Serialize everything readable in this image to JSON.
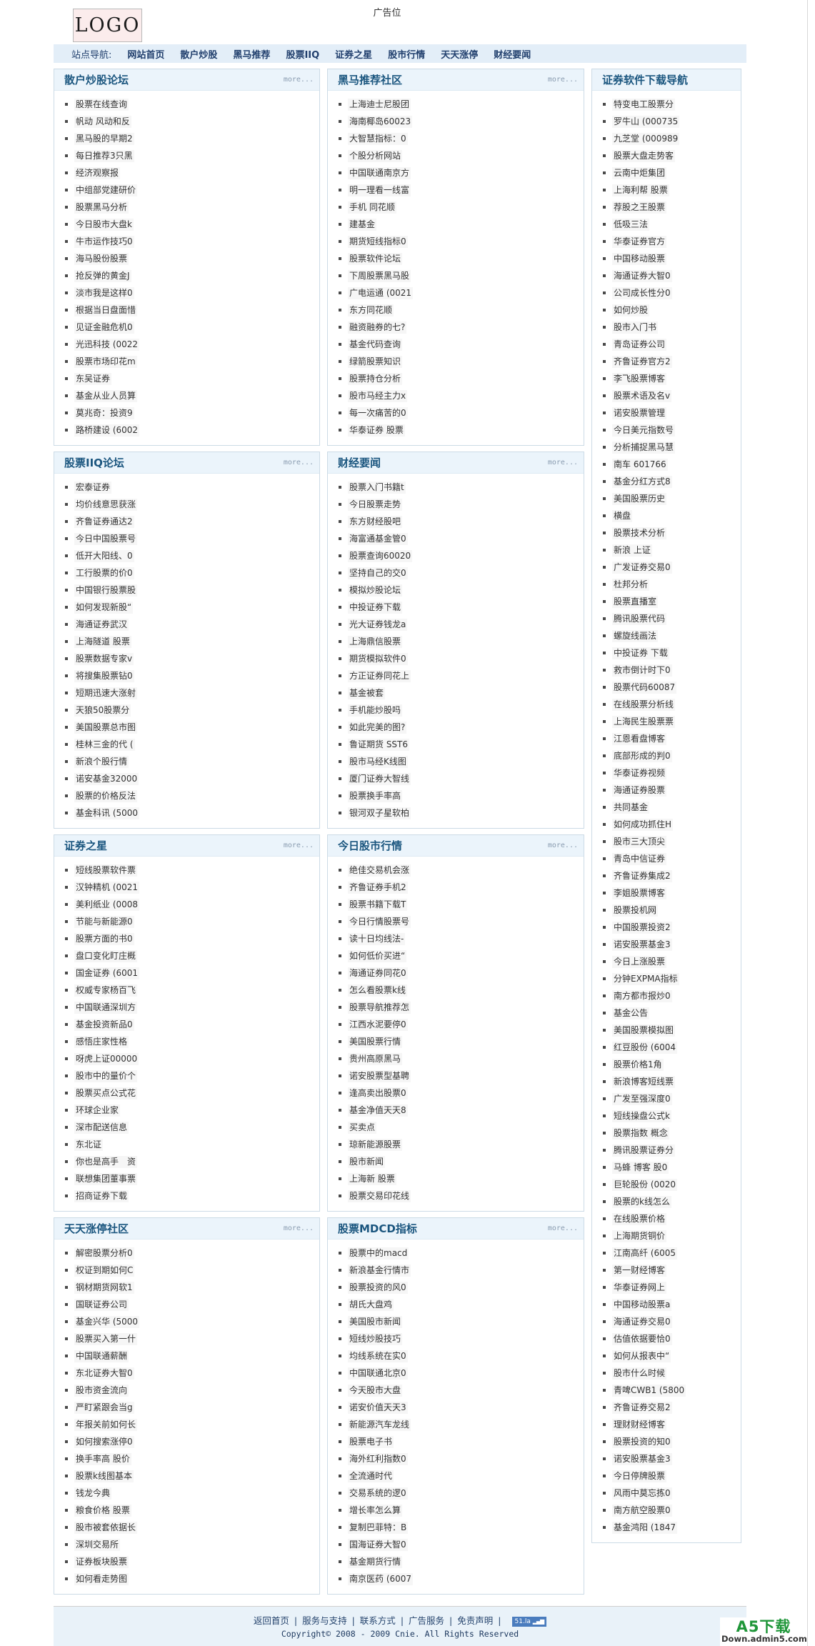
{
  "header": {
    "logo": "LOGO",
    "ad_text": "广告位"
  },
  "nav": {
    "label": "站点导航:",
    "items": [
      "网站首页",
      "散户炒股",
      "黑马推荐",
      "股票IIQ",
      "证券之星",
      "股市行情",
      "天天涨停",
      "财经要闻"
    ]
  },
  "more_label": "more...",
  "columns": {
    "left": [
      {
        "title": "散户炒股论坛",
        "more": true,
        "items": [
          "股票在线查询",
          "帆动 风动和反",
          "黑马股的早期2",
          "每日推荐3只黑",
          "经济观察报",
          "中组部党建研价",
          "股票黑马分析",
          "今日股市大盘k",
          "牛市运作技巧0",
          "海马股份股票",
          "抢反弹的黄金J",
          "淡市我是这样0",
          "根据当日盘面惜",
          "见证金融危机0",
          "光迅科技 (0022",
          "股票市场印花m",
          "东吴证券",
          "基金从业人员算",
          "莫兆奇：投资9",
          "路桥建设 (6002"
        ]
      },
      {
        "title": "股票IIQ论坛",
        "more": true,
        "items": [
          "宏泰证券",
          "均价线意思获涨",
          "齐鲁证券通达2",
          "今日中国股票号",
          "低开大阳线、0",
          "工行股票的价0",
          "中国银行股票股",
          "如何发现新股“",
          "海通证券武汉",
          "上海隧道 股票",
          "股票数据专家v",
          "将搜集股票钻0",
          "短期迅速大涨射",
          "天狼50股票分",
          "美国股票总市图",
          "桂林三金的代 (",
          "新浪个股行情",
          "诺安基金32000",
          "股票的价格反法",
          "基金科讯 (5000"
        ]
      },
      {
        "title": "证券之星",
        "more": true,
        "items": [
          "短线股票软件票",
          "汉钟精机 (0021",
          "美利纸业 (0008",
          "节能与新能源0",
          "股票方面的书0",
          "盘口变化盯庄概",
          "国金证券 (6001",
          "权威专家杨百飞",
          "中国联通深圳方",
          "基金投资新品0",
          "感悟庄家性格",
          "呀虎上证00000",
          "股市中的量价个",
          "股票买点公式花",
          "环球企业家",
          "深市配送信息",
          "东北证",
          "你也是高手　资",
          "联想集团董事票",
          "招商证券下载"
        ]
      },
      {
        "title": "天天涨停社区",
        "more": true,
        "items": [
          "解密股票分析0",
          "权证到期如何C",
          "钢材期货网软1",
          "国联证券公司",
          "基金兴华 (5000",
          "股票买入第一什",
          "中国联通薪酬",
          "东北证券大智0",
          "股市资金流向",
          "严盯紧跟会当g",
          "年报关前如何长",
          "如何搜索涨停0",
          "换手率高 股价",
          "股票k线图基本",
          "钱龙今典",
          "粮食价格 股票",
          "股市被套依据长",
          "深圳交易所",
          "证券板块股票",
          "如何看走势图"
        ]
      }
    ],
    "middle": [
      {
        "title": "黑马推荐社区",
        "more": true,
        "items": [
          "上海迪士尼股团",
          "海南椰岛60023",
          "大智慧指标：0",
          "个股分析网站",
          "中国联通南京方",
          "明一理看一线富",
          "手机 同花顺",
          "建基金",
          "期货短线指标0",
          "股票软件论坛",
          "下周股票黑马股",
          "广电运通 (0021",
          "东方同花顺",
          "融资融券的七?",
          "基金代码查询",
          "绿箭股票知识",
          "股票持仓分析",
          "股市马经主力x",
          "每一次痛苦的0",
          "华泰证券 股票"
        ]
      },
      {
        "title": "财经要闻",
        "more": true,
        "items": [
          "股票入门书籍t",
          "今日股票走势",
          "东方财经股吧",
          "海富通基金管0",
          "股票查询60020",
          "坚持自己的交0",
          "模拟炒股论坛",
          "中投证券下载",
          "光大证券钱龙a",
          "上海鼎信股票",
          "期货模拟软件0",
          "方正证券同花上",
          "基金被套",
          "手机能炒股吗",
          "如此完美的图?",
          "鲁证期货 SST6",
          "股市马经K线图",
          "厦门证券大智线",
          "股票换手率高",
          "银河双子星软柏"
        ]
      },
      {
        "title": "今日股市行情",
        "more": true,
        "items": [
          "绝佳交易机会涨",
          "齐鲁证券手机2",
          "股票书籍下载T",
          "今日行情股票号",
          "读十日均线法-",
          "如何低价买进“",
          "海通证券同花0",
          "怎么看股票k线",
          "股票导航推荐怎",
          "江西水泥要停0",
          "美国股票行情",
          "贵州高原黑马",
          "诺安股票型基聘",
          "逢高卖出股票0",
          "基金净值天天8",
          "买卖点",
          "琼新能源股票",
          "股市新闻",
          "上海新 股票",
          "股票交易印花线"
        ]
      },
      {
        "title": "股票MDCD指标",
        "more": true,
        "items": [
          "股票中的macd",
          "新浪基金行情市",
          "股票投资的风0",
          "胡氏大盘鸡",
          "美国股市新闻",
          "短线炒股技巧",
          "均线系统在实0",
          "中国联通北京0",
          "今天股市大盘",
          "诺安价值天天3",
          "新能源汽车龙线",
          "股票电子书",
          "海外红利指数0",
          "全流通时代",
          "交易系统的逻0",
          "增长率怎么算",
          "复制巴菲特：B",
          "国海证券大智0",
          "基金期货行情",
          "南京医药 (6007"
        ]
      }
    ],
    "right": [
      {
        "title": "证券软件下载导航",
        "more": false,
        "items": [
          "特变电工股票分",
          "罗牛山 (000735",
          "九芝堂 (000989",
          "股票大盘走势客",
          "云南中炬集团",
          "上海利帮 股票",
          "荐股之王股票",
          "低吸三法",
          "华泰证券官方",
          "中国移动股票",
          "海通证券大智0",
          "公司成长性分0",
          "如何炒股",
          "股市入门书",
          "青岛证券公司",
          "齐鲁证券官方2",
          "李飞股票博客",
          "股票术语及名v",
          "诺安股票管理",
          "今日美元指数号",
          "分析捕捉黑马慧",
          "南车 601766",
          "基金分红方式8",
          "美国股票历史",
          "横盘",
          "股票技术分析",
          "新浪 上证",
          "广发证券交易0",
          "杜邦分析",
          "股票直播室",
          "腾讯股票代码",
          "螺旋线画法",
          "中投证券 下载",
          "救市倒计时下0",
          "股票代码60087",
          "在线股票分析线",
          "上海民生股票票",
          "江恩看盘博客",
          "底部形成的判0",
          "华泰证券视频",
          "海通证券股票",
          "共同基金",
          "如何成功抓住H",
          "股市三大顶尖",
          "青岛中信证券",
          "齐鲁证券集成2",
          "李姐股票博客",
          "股票投机网",
          "中国股票投资2",
          "诺安股票基金3",
          "今日上涨股票",
          "分钟EXPMA指标",
          "南方都市报炒0",
          "基金公告",
          "美国股票模拟图",
          "红豆股份 (6004",
          "股票价格1角",
          "新浪博客短线票",
          "广发至强深度0",
          "短线操盘公式k",
          "股票指数 概念",
          "腾讯股票证券分",
          "马蜂 博客 股0",
          "巨轮股份 (0020",
          "股票的k线怎么",
          "在线股票价格",
          "上海期货铜价",
          "江南高纤 (6005",
          "第一财经博客",
          "华泰证券网上",
          "中国移动股票a",
          "海通证券交易0",
          "估值依据要恰0",
          "如何从报表中“",
          "股市什么时候",
          "青啤CWB1 (5800",
          "齐鲁证券交易2",
          "理财财经博客",
          "股票投资的知0",
          "诺安股票基金3",
          "今日停牌股票",
          "风雨中莫忘拣0",
          "南方航空股票0",
          "基金鸿阳 (1847"
        ]
      }
    ]
  },
  "footer": {
    "links": [
      "返回首页",
      "服务与支持",
      "联系方式",
      "广告服务",
      "免责声明"
    ],
    "stat_badge": "51.la",
    "copyright": "Copyright© 2008 - 2009 Cnie. All Rights Reserved"
  },
  "watermark": {
    "title": "A5下载",
    "domain": "Down.admin5.com"
  }
}
